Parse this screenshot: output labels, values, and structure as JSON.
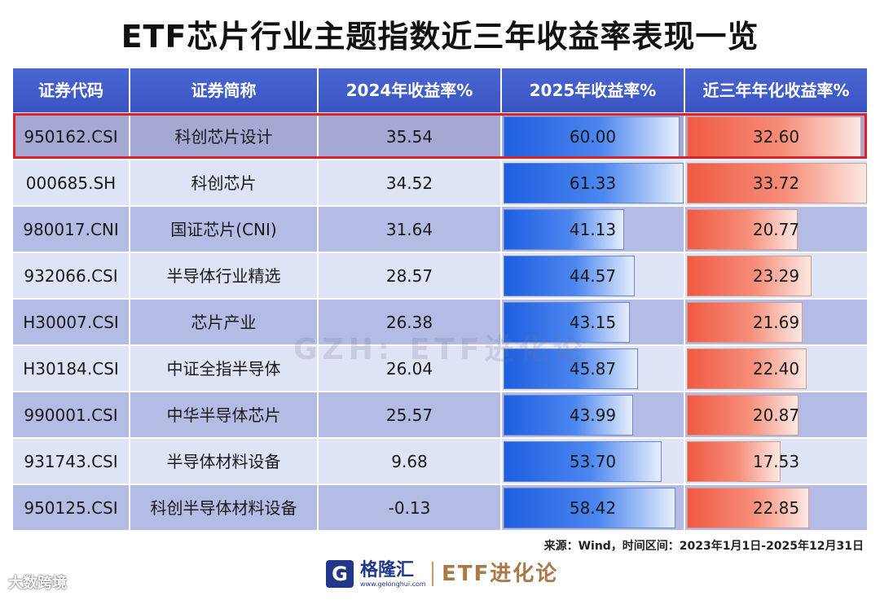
{
  "title": "ETF芯片行业主题指数近三年收益率表现一览",
  "headers": [
    "证券代码",
    "证券简称",
    "2024年收益率%",
    "2025年收益率%",
    "近三年年化收益率%"
  ],
  "rows": [
    {
      "code": "950162.CSI",
      "name": "科创芯片设计",
      "r2024": "35.54",
      "r2025": "60.00",
      "r3y": "32.60"
    },
    {
      "code": "000685.SH",
      "name": "科创芯片",
      "r2024": "34.52",
      "r2025": "61.33",
      "r3y": "33.72"
    },
    {
      "code": "980017.CNI",
      "name": "国证芯片(CNI)",
      "r2024": "31.64",
      "r2025": "41.13",
      "r3y": "20.77"
    },
    {
      "code": "932066.CSI",
      "name": "半导体行业精选",
      "r2024": "28.57",
      "r2025": "44.57",
      "r3y": "23.29"
    },
    {
      "code": "H30007.CSI",
      "name": "芯片产业",
      "r2024": "26.38",
      "r2025": "43.15",
      "r3y": "21.69"
    },
    {
      "code": "H30184.CSI",
      "name": "中证全指半导体",
      "r2024": "26.04",
      "r2025": "45.87",
      "r3y": "22.40"
    },
    {
      "code": "990001.CSI",
      "name": "中华半导体芯片",
      "r2024": "25.57",
      "r2025": "43.99",
      "r3y": "20.87"
    },
    {
      "code": "931743.CSI",
      "name": "半导体材料设备",
      "r2024": "9.68",
      "r2025": "53.70",
      "r3y": "17.53"
    },
    {
      "code": "950125.CSI",
      "name": "科创半导体材料设备",
      "r2024": "-0.13",
      "r2025": "58.42",
      "r3y": "22.85"
    }
  ],
  "chart_data": {
    "type": "table",
    "title": "ETF芯片行业主题指数近三年收益率表现一览",
    "columns": [
      "证券代码",
      "证券简称",
      "2024年收益率%",
      "2025年收益率%",
      "近三年年化收益率%"
    ],
    "bar_columns": [
      "2025年收益率%",
      "近三年年化收益率%"
    ],
    "bar_max": {
      "r2025": 61.33,
      "r3y": 33.72
    },
    "highlight_row": "950162.CSI",
    "series": [
      {
        "name": "2024年收益率%",
        "values": [
          35.54,
          34.52,
          31.64,
          28.57,
          26.38,
          26.04,
          25.57,
          9.68,
          -0.13
        ]
      },
      {
        "name": "2025年收益率%",
        "values": [
          60.0,
          61.33,
          41.13,
          44.57,
          43.15,
          45.87,
          43.99,
          53.7,
          58.42
        ]
      },
      {
        "name": "近三年年化收益率%",
        "values": [
          32.6,
          33.72,
          20.77,
          23.29,
          21.69,
          22.4,
          20.87,
          17.53,
          22.85
        ]
      }
    ]
  },
  "watermark": "GZH: ETF进化论",
  "source": "来源：Wind，时间区间：2023年1月1日-2025年12月31日",
  "footer": {
    "logo_mark": "G",
    "logo_text": "格隆汇",
    "logo_url": "www.gelonghui.com",
    "brand": "ETF进化论"
  },
  "corner_watermark": "大数跨境",
  "colors": {
    "header_bg": "#3a54c2",
    "row_odd": "#b4bce6",
    "row_even": "#dfe3f6",
    "bar_blue": "#1e5fe0",
    "bar_red": "#ef5a42",
    "highlight": "#e3202a",
    "brand": "#a9794a"
  }
}
